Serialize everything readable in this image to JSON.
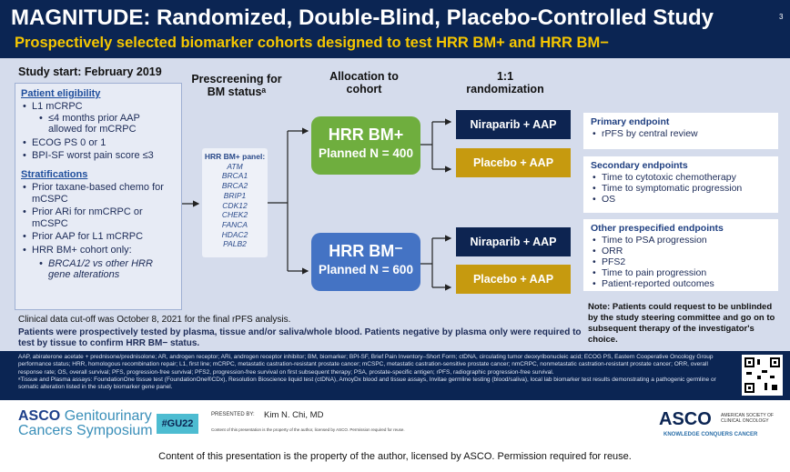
{
  "slide": {
    "title": "MAGNITUDE: Randomized, Double-Blind, Placebo-Controlled Study",
    "page_number": "3",
    "subtitle": "Prospectively selected biomarker cohorts designed to test HRR BM+ and HRR BM−"
  },
  "study_start": "Study start: February 2019",
  "eligibility": {
    "heading": "Patient eligibility",
    "items": [
      "L1 mCRPC",
      "≤4 months prior AAP allowed for mCRPC",
      "ECOG PS 0 or 1",
      "BPI-SF worst pain score ≤3"
    ]
  },
  "stratifications": {
    "heading": "Stratifications",
    "items": [
      "Prior taxane-based chemo for mCSPC",
      "Prior ARi for nmCRPC or mCSPC",
      "Prior AAP for L1 mCRPC",
      "HRR BM+ cohort only:",
      "BRCA1/2 vs other HRR gene alterations"
    ]
  },
  "columns": {
    "prescreen": "Prescreening for BM statusᵃ",
    "allocation": "Allocation to cohort",
    "randomization": "1:1 randomization"
  },
  "panel": {
    "title": "HRR BM+ panel:",
    "genes": [
      "ATM",
      "BRCA1",
      "BRCA2",
      "BRIP1",
      "CDK12",
      "CHEK2",
      "FANCA",
      "HDAC2",
      "PALB2"
    ]
  },
  "cohorts": [
    {
      "name": "HRR BM+",
      "planned": "Planned N = 400",
      "color": "#6fae3e"
    },
    {
      "name": "HRR BM⁻",
      "planned": "Planned N = 600",
      "color": "#4473c4"
    }
  ],
  "arms": {
    "niraparib": "Niraparib + AAP",
    "placebo": "Placebo + AAP"
  },
  "endpoints": [
    {
      "heading": "Primary endpoint",
      "items": [
        "rPFS by central review"
      ]
    },
    {
      "heading": "Secondary endpoints",
      "items": [
        "Time to cytotoxic chemotherapy",
        "Time to symptomatic progression",
        "OS"
      ]
    },
    {
      "heading": "Other prespecified endpoints",
      "items": [
        "Time to PSA progression",
        "ORR",
        "PFS2",
        "Time to pain progression",
        "Patient-reported outcomes"
      ]
    }
  ],
  "note": "Note: Patients could request to be unblinded by the study steering committee and go on to subsequent therapy of the investigator's choice.",
  "cutoff": "Clinical data cut-off was October 8, 2021 for the final rPFS analysis.",
  "prospective": "Patients were prospectively tested by plasma, tissue and/or saliva/whole blood. Patients negative by plasma only were required to test by tissue to confirm HRR BM− status.",
  "abbreviations": "AAP, abiraterone acetate + prednisone/prednisolone; AR, androgen receptor; ARi, androgen receptor inhibitor; BM, biomarker; BPI-SF, Brief Pain Inventory–Short Form; ctDNA, circulating tumor deoxyribonucleic acid; ECOG PS, Eastern Cooperative Oncology Group performance status; HRR, homologous recombination repair; L1, first line; mCRPC, metastatic castration-resistant prostate cancer; mCSPC, metastatic castration-sensitive prostate cancer; nmCRPC, nonmetastatic castration-resistant prostate cancer; ORR, overall response rate; OS, overall survival; PFS, progression-free survival; PFS2, progression-free survival on first subsequent therapy; PSA, prostate-specific antigen; rPFS, radiographic progression-free survival.",
  "assays": "ᵃTissue and Plasma assays: FoundationOne tissue test (FoundationOne®CDx), Resolution Bioscience liquid test (ctDNA), AmoyDx blood and tissue assays, Invitae germline testing (blood/saliva), local lab biomarker test results demonstrating a pathogenic germline or somatic alteration listed in the study biomarker gene panel.",
  "footer": {
    "asco_word": "ASCO",
    "meeting_line1": "Genitourinary",
    "meeting_line2": "Cancers Symposium",
    "hashtag": "#GU22",
    "presented_by": "PRESENTED BY:",
    "presenter": "Kim N. Chi, MD",
    "license_small": "Content of this presentation is the property of the author, licensed by ASCO. Permission required for reuse.",
    "asco_logo": "ASCO",
    "asco_society": "AMERICAN SOCIETY OF CLINICAL ONCOLOGY",
    "asco_tagline": "KNOWLEDGE CONQUERS CANCER"
  },
  "caption": "Content of this presentation is the property of the author, licensed by ASCO. Permission required for reuse."
}
